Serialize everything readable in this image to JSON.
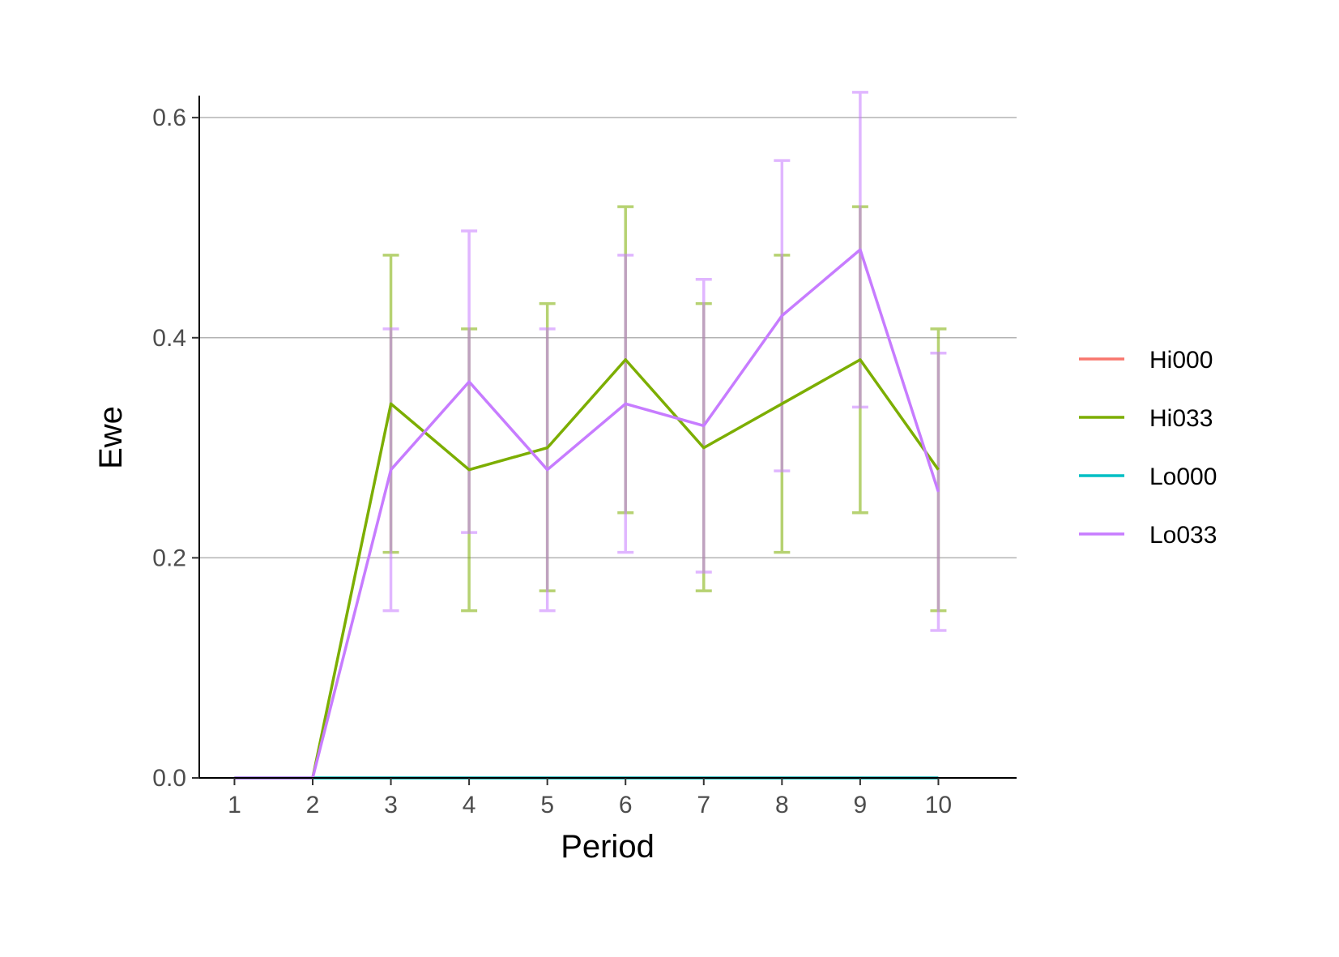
{
  "chart_data": {
    "type": "line",
    "xlabel": "Period",
    "ylabel": "Ewe",
    "x": [
      1,
      2,
      3,
      4,
      5,
      6,
      7,
      8,
      9,
      10
    ],
    "x_ticks": [
      "1",
      "2",
      "3",
      "4",
      "5",
      "6",
      "7",
      "8",
      "9",
      "10"
    ],
    "xlim": [
      0.55,
      11.0
    ],
    "ylim": [
      0.0,
      0.62
    ],
    "y_ticks": [
      0.0,
      0.2,
      0.4,
      0.6
    ],
    "y_tick_labels": [
      "0.0",
      "0.2",
      "0.4",
      "0.6"
    ],
    "grid": "horizontal major gridlines",
    "legend_position": "right",
    "series": [
      {
        "name": "Hi000",
        "color": "#F8766D",
        "values": [
          0,
          0,
          0,
          0,
          0,
          0,
          0,
          0,
          0,
          0
        ],
        "error_low": null,
        "error_high": null
      },
      {
        "name": "Hi033",
        "color": "#7CAE00",
        "values": [
          0,
          0,
          0.34,
          0.28,
          0.3,
          0.38,
          0.3,
          0.34,
          0.38,
          0.28
        ],
        "error_low": [
          null,
          null,
          0.205,
          0.152,
          0.17,
          0.241,
          0.17,
          0.205,
          0.241,
          0.152
        ],
        "error_high": [
          null,
          null,
          0.475,
          0.408,
          0.431,
          0.519,
          0.431,
          0.475,
          0.519,
          0.408
        ]
      },
      {
        "name": "Lo000",
        "color": "#00BFC4",
        "values": [
          0,
          0,
          0,
          0,
          0,
          0,
          0,
          0,
          0,
          0
        ],
        "error_low": null,
        "error_high": null
      },
      {
        "name": "Lo033",
        "color": "#C77CFF",
        "values": [
          0,
          0,
          0.28,
          0.36,
          0.28,
          0.34,
          0.32,
          0.42,
          0.48,
          0.26
        ],
        "error_low": [
          null,
          null,
          0.152,
          0.223,
          0.152,
          0.205,
          0.187,
          0.279,
          0.337,
          0.134
        ],
        "error_high": [
          null,
          null,
          0.408,
          0.497,
          0.408,
          0.475,
          0.453,
          0.561,
          0.623,
          0.386
        ]
      }
    ]
  }
}
